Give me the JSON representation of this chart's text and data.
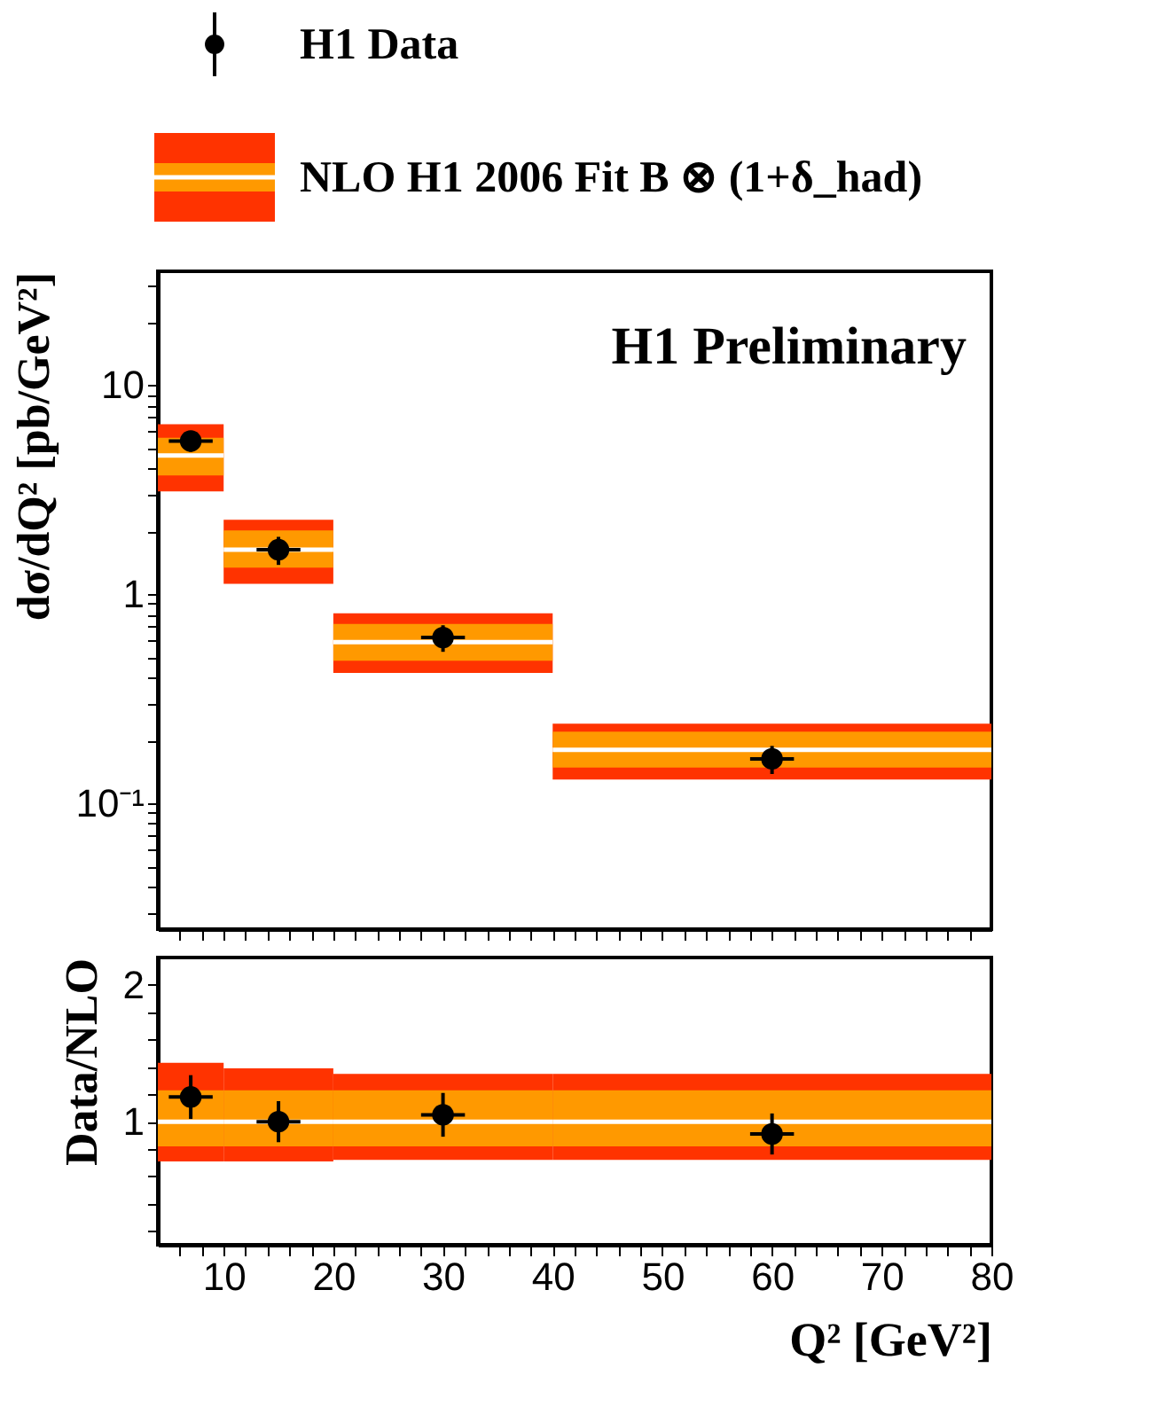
{
  "chart_data": [
    {
      "type": "scatter",
      "legend": "top",
      "ylabel": "dσ/dQ² [pb/GeV²]",
      "annotations": [
        "H1 Preliminary"
      ],
      "log": "y",
      "tick_labels": "y",
      "xlim": [
        4,
        80
      ],
      "xticks": [
        {
          "value": 6,
          "label": null
        },
        {
          "value": 8,
          "label": null
        },
        {
          "value": 10,
          "label": null
        },
        {
          "value": 12,
          "label": null
        },
        {
          "value": 14,
          "label": null
        },
        {
          "value": 16,
          "label": null
        },
        {
          "value": 18,
          "label": null
        },
        {
          "value": 20,
          "label": null
        },
        {
          "value": 22,
          "label": null
        },
        {
          "value": 24,
          "label": null
        },
        {
          "value": 26,
          "label": null
        },
        {
          "value": 28,
          "label": null
        },
        {
          "value": 30,
          "label": null
        },
        {
          "value": 32,
          "label": null
        },
        {
          "value": 34,
          "label": null
        },
        {
          "value": 36,
          "label": null
        },
        {
          "value": 38,
          "label": null
        },
        {
          "value": 40,
          "label": null
        },
        {
          "value": 42,
          "label": null
        },
        {
          "value": 44,
          "label": null
        },
        {
          "value": 46,
          "label": null
        },
        {
          "value": 48,
          "label": null
        },
        {
          "value": 50,
          "label": null
        },
        {
          "value": 52,
          "label": null
        },
        {
          "value": 54,
          "label": null
        },
        {
          "value": 56,
          "label": null
        },
        {
          "value": 58,
          "label": null
        },
        {
          "value": 60,
          "label": null
        },
        {
          "value": 62,
          "label": null
        },
        {
          "value": 64,
          "label": null
        },
        {
          "value": 66,
          "label": null
        },
        {
          "value": 68,
          "label": null
        },
        {
          "value": 70,
          "label": null
        },
        {
          "value": 72,
          "label": null
        },
        {
          "value": 74,
          "label": null
        },
        {
          "value": 76,
          "label": null
        },
        {
          "value": 78,
          "label": null
        }
      ],
      "ylim": [
        0.025,
        35
      ],
      "yticks": [
        {
          "value": 0.03,
          "label": null
        },
        {
          "value": 0.04,
          "label": null
        },
        {
          "value": 0.05,
          "label": null
        },
        {
          "value": 0.06,
          "label": null
        },
        {
          "value": 0.07,
          "label": null
        },
        {
          "value": 0.08,
          "label": null
        },
        {
          "value": 0.09,
          "label": null
        },
        {
          "value": 0.1,
          "label": "10⁻¹"
        },
        {
          "value": 0.2,
          "label": null
        },
        {
          "value": 0.3,
          "label": null
        },
        {
          "value": 0.4,
          "label": null
        },
        {
          "value": 0.5,
          "label": null
        },
        {
          "value": 0.6,
          "label": null
        },
        {
          "value": 0.7,
          "label": null
        },
        {
          "value": 0.8,
          "label": null
        },
        {
          "value": 0.9,
          "label": null
        },
        1,
        {
          "value": 2,
          "label": null
        },
        {
          "value": 3,
          "label": null
        },
        {
          "value": 4,
          "label": null
        },
        {
          "value": 5,
          "label": null
        },
        {
          "value": 6,
          "label": null
        },
        {
          "value": 7,
          "label": null
        },
        {
          "value": 8,
          "label": null
        },
        {
          "value": 9,
          "label": null
        },
        10,
        {
          "value": 20,
          "label": null
        },
        {
          "value": 30,
          "label": null
        }
      ],
      "series": [
        {
          "name": "H1 Data",
          "type": "scatter",
          "marker": "circle",
          "color": "#000000",
          "x": [
            7,
            15,
            30,
            60
          ],
          "values": [
            5.4,
            1.63,
            0.62,
            0.163
          ],
          "errors": [
            0.6,
            0.25,
            0.09,
            0.025
          ],
          "xerrors": [
            2,
            2,
            2,
            2
          ]
        },
        {
          "type": "step",
          "color": "#ff3300",
          "x": [
            4,
            10,
            20,
            40,
            80
          ],
          "values": [
            null,
            null,
            null,
            null,
            null
          ],
          "lower": [
            3.1,
            1.12,
            0.42,
            0.13,
            0.13
          ],
          "upper": [
            6.5,
            2.27,
            0.81,
            0.24,
            0.24
          ]
        },
        {
          "name": "NLO H1 2006 Fit B ⊗ (1+δ_had)",
          "type": "step",
          "color": "#ff9900",
          "x": [
            4,
            10,
            20,
            40,
            80
          ],
          "values": [
            null,
            null,
            null,
            null,
            null
          ],
          "lower": [
            3.7,
            1.34,
            0.48,
            0.148,
            0.148
          ],
          "upper": [
            5.6,
            2.02,
            0.72,
            0.22,
            0.22
          ]
        },
        {
          "type": "step",
          "color": "#ffffff",
          "x": [
            4,
            10,
            20,
            40,
            80
          ],
          "values": [
            4.6,
            1.63,
            0.59,
            0.18,
            0.18
          ]
        }
      ]
    },
    {
      "type": "scatter",
      "xlabel": "Q² [GeV²]",
      "ylabel": "Data/NLO",
      "xlim": [
        4,
        80
      ],
      "xticks": [
        {
          "value": 6,
          "label": null
        },
        {
          "value": 8,
          "label": null
        },
        10,
        {
          "value": 12,
          "label": null
        },
        {
          "value": 14,
          "label": null
        },
        {
          "value": 16,
          "label": null
        },
        {
          "value": 18,
          "label": null
        },
        20,
        {
          "value": 22,
          "label": null
        },
        {
          "value": 24,
          "label": null
        },
        {
          "value": 26,
          "label": null
        },
        {
          "value": 28,
          "label": null
        },
        30,
        {
          "value": 32,
          "label": null
        },
        {
          "value": 34,
          "label": null
        },
        {
          "value": 36,
          "label": null
        },
        {
          "value": 38,
          "label": null
        },
        40,
        {
          "value": 42,
          "label": null
        },
        {
          "value": 44,
          "label": null
        },
        {
          "value": 46,
          "label": null
        },
        {
          "value": 48,
          "label": null
        },
        50,
        {
          "value": 52,
          "label": null
        },
        {
          "value": 54,
          "label": null
        },
        {
          "value": 56,
          "label": null
        },
        {
          "value": 58,
          "label": null
        },
        60,
        {
          "value": 62,
          "label": null
        },
        {
          "value": 64,
          "label": null
        },
        {
          "value": 66,
          "label": null
        },
        {
          "value": 68,
          "label": null
        },
        70,
        {
          "value": 72,
          "label": null
        },
        {
          "value": 74,
          "label": null
        },
        {
          "value": 76,
          "label": null
        },
        {
          "value": 78,
          "label": null
        },
        80
      ],
      "ylim": [
        0.1,
        2.2
      ],
      "yticks": [
        {
          "value": 0.2,
          "label": null
        },
        {
          "value": 0.4,
          "label": null
        },
        {
          "value": 0.6,
          "label": null
        },
        {
          "value": 0.8,
          "label": null
        },
        1,
        {
          "value": 1.2,
          "label": null
        },
        {
          "value": 1.4,
          "label": null
        },
        {
          "value": 1.6,
          "label": null
        },
        {
          "value": 1.8,
          "label": null
        },
        2
      ],
      "series": [
        {
          "type": "scatter",
          "marker": "circle",
          "color": "#000000",
          "x": [
            7,
            15,
            30,
            60
          ],
          "values": [
            1.18,
            1.0,
            1.05,
            0.91
          ],
          "errors": [
            0.16,
            0.15,
            0.16,
            0.15
          ],
          "xerrors": [
            2,
            2,
            2,
            2
          ]
        },
        {
          "type": "step",
          "color": "#ff3300",
          "x": [
            4,
            10,
            20,
            40,
            80
          ],
          "values": [
            null,
            null,
            null,
            null,
            null
          ],
          "lower": [
            0.71,
            0.71,
            0.72,
            0.72,
            0.72
          ],
          "upper": [
            1.43,
            1.39,
            1.35,
            1.35,
            1.35
          ]
        },
        {
          "type": "step",
          "color": "#ff9900",
          "x": [
            4,
            10,
            20,
            40,
            80
          ],
          "values": [
            null,
            null,
            null,
            null,
            null
          ],
          "lower": [
            0.82,
            0.82,
            0.82,
            0.82,
            0.82
          ],
          "upper": [
            1.23,
            1.23,
            1.23,
            1.23,
            1.23
          ]
        },
        {
          "type": "step",
          "color": "#ffffff",
          "x": [
            4,
            10,
            20,
            40,
            80
          ],
          "values": [
            1,
            1,
            1,
            1,
            1
          ]
        }
      ]
    }
  ]
}
